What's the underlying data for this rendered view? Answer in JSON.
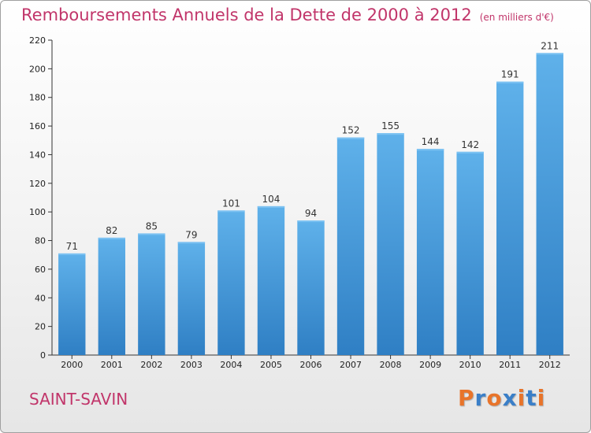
{
  "chart_data": {
    "type": "bar",
    "title": "Remboursements Annuels de la Dette de 2000 à 2012",
    "subtitle": "(en milliers d'€)",
    "categories": [
      "2000",
      "2001",
      "2002",
      "2003",
      "2004",
      "2005",
      "2006",
      "2007",
      "2008",
      "2009",
      "2010",
      "2011",
      "2012"
    ],
    "values": [
      71,
      82,
      85,
      79,
      101,
      104,
      94,
      152,
      155,
      144,
      142,
      191,
      211
    ],
    "xlabel": "",
    "ylabel": "",
    "ylim": [
      0,
      220
    ],
    "yticks": [
      0,
      20,
      40,
      60,
      80,
      100,
      120,
      140,
      160,
      180,
      200,
      220
    ],
    "grid": false,
    "legend": "none",
    "bar_color": "#4a9fe0",
    "bar_color_light": "#5aaee8",
    "bar_color_dark": "#2f7fc4"
  },
  "footer": {
    "commune": "SAINT-SAVIN",
    "logo_letters": [
      "P",
      "r",
      "o",
      "x",
      "i",
      "t",
      "i"
    ],
    "logo_colors": [
      "#e8742a",
      "#3a7fc8",
      "#e8742a",
      "#3a7fc8",
      "#e8742a",
      "#3a7fc8",
      "#e8742a"
    ]
  },
  "colors": {
    "title": "#c1356a",
    "axis": "#333333"
  }
}
